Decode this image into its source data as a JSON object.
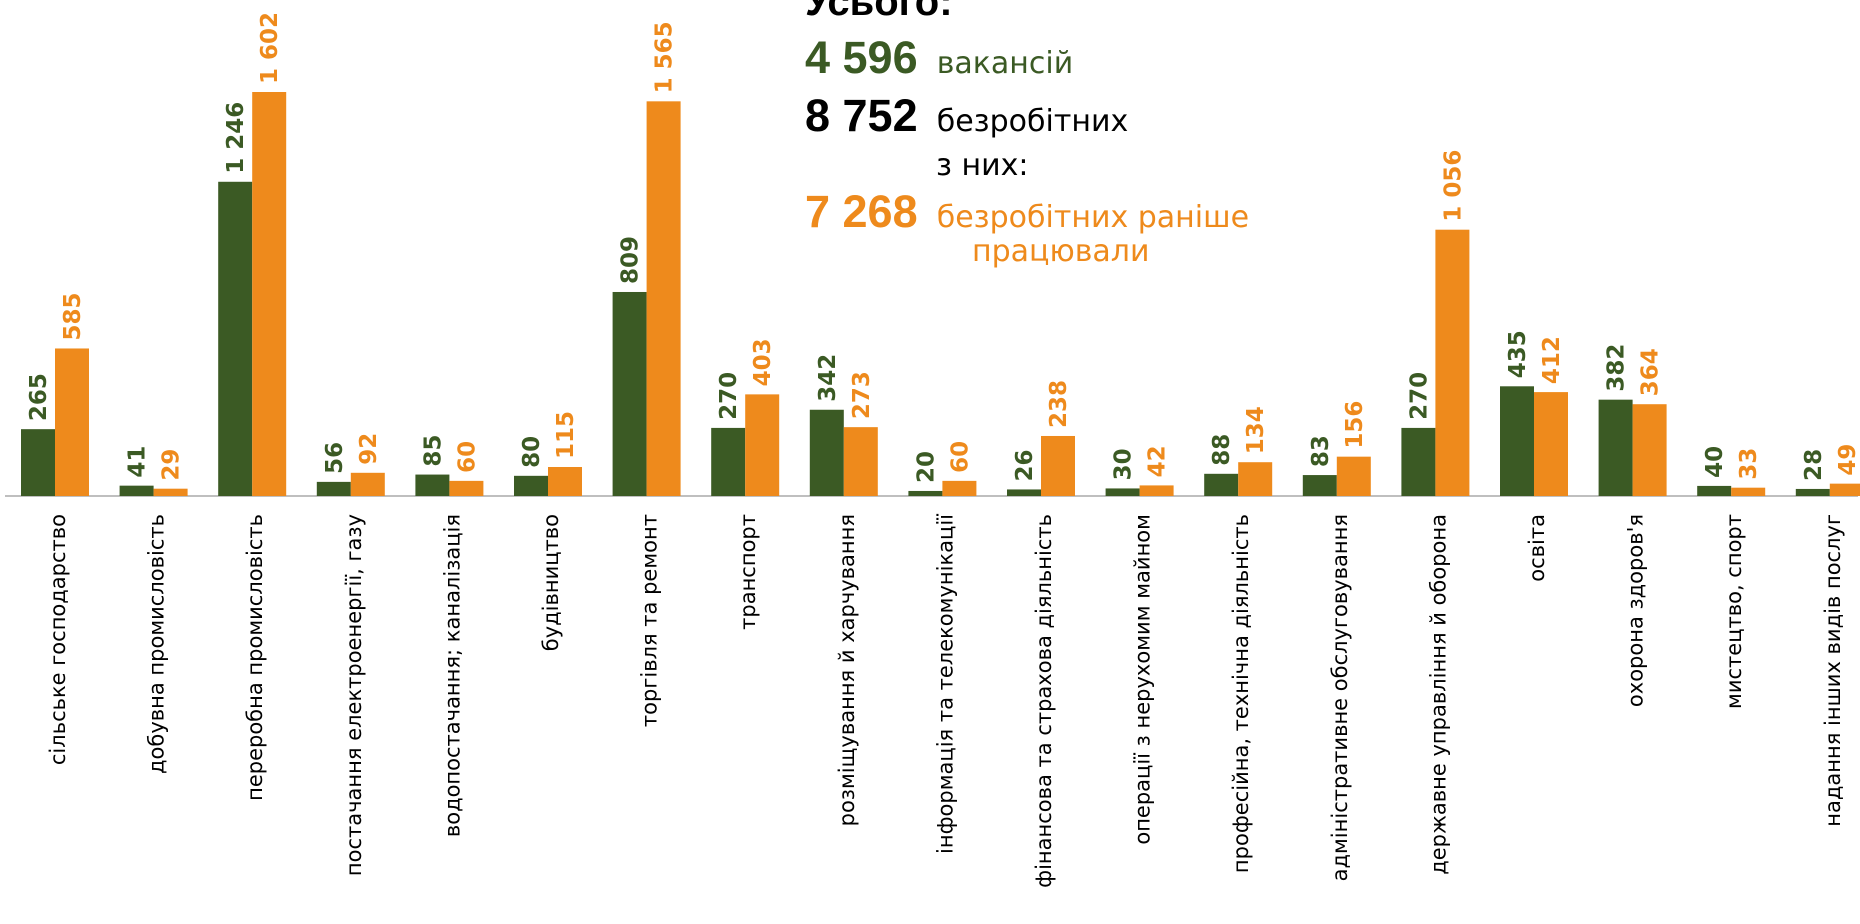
{
  "chart_data": {
    "type": "bar",
    "categories": [
      "сільське господарство",
      "добувна промисловість",
      "переробна промисловість",
      "постачання електроенергії, газу",
      "водопостачання; каналізація",
      "будівництво",
      "торгівля та ремонт",
      "транспорт",
      "розміщування й харчування",
      "інформація та телекомунікації",
      "фінансова та страхова діяльність",
      "операції з нерухомим майном",
      "професійна, технічна діяльність",
      "адміністративне обслуговування",
      "державне управління й оборона",
      "освіта",
      "охорона здоров'я",
      "мистецтво, спорт",
      "надання інших видів послуг"
    ],
    "series": [
      {
        "color": "#3b5a24",
        "values": [
          265,
          41,
          1246,
          56,
          85,
          80,
          809,
          270,
          342,
          20,
          26,
          30,
          88,
          83,
          270,
          435,
          382,
          40,
          28
        ],
        "labels": [
          "265",
          "41",
          "1 246",
          "56",
          "85",
          "80",
          "809",
          "270",
          "342",
          "20",
          "26",
          "30",
          "88",
          "83",
          "270",
          "435",
          "382",
          "40",
          "28"
        ]
      },
      {
        "color": "#ee8a1c",
        "values": [
          585,
          29,
          1602,
          92,
          60,
          115,
          1565,
          403,
          273,
          60,
          238,
          42,
          134,
          156,
          1056,
          412,
          364,
          33,
          49
        ],
        "labels": [
          "585",
          "29",
          "1 602",
          "92",
          "60",
          "115",
          "1 565",
          "403",
          "273",
          "60",
          "238",
          "42",
          "134",
          "156",
          "1 056",
          "412",
          "364",
          "33",
          "49"
        ]
      }
    ],
    "ylim": [
      0,
      1602
    ],
    "grid": false,
    "legend": "none"
  },
  "totals": {
    "heading": "Усього:",
    "vacancies": {
      "number": "4 596",
      "text": "вакансій"
    },
    "unemployed": {
      "number": "8 752",
      "text": "безробітних"
    },
    "of_them": "з них:",
    "worked_before": {
      "number": "7 268",
      "text_line1": "безробітних раніше",
      "text_line2": "працювали"
    }
  },
  "colors": {
    "green": "#3b5a24",
    "orange": "#ee8a1c",
    "axis": "#bfbfbf"
  }
}
